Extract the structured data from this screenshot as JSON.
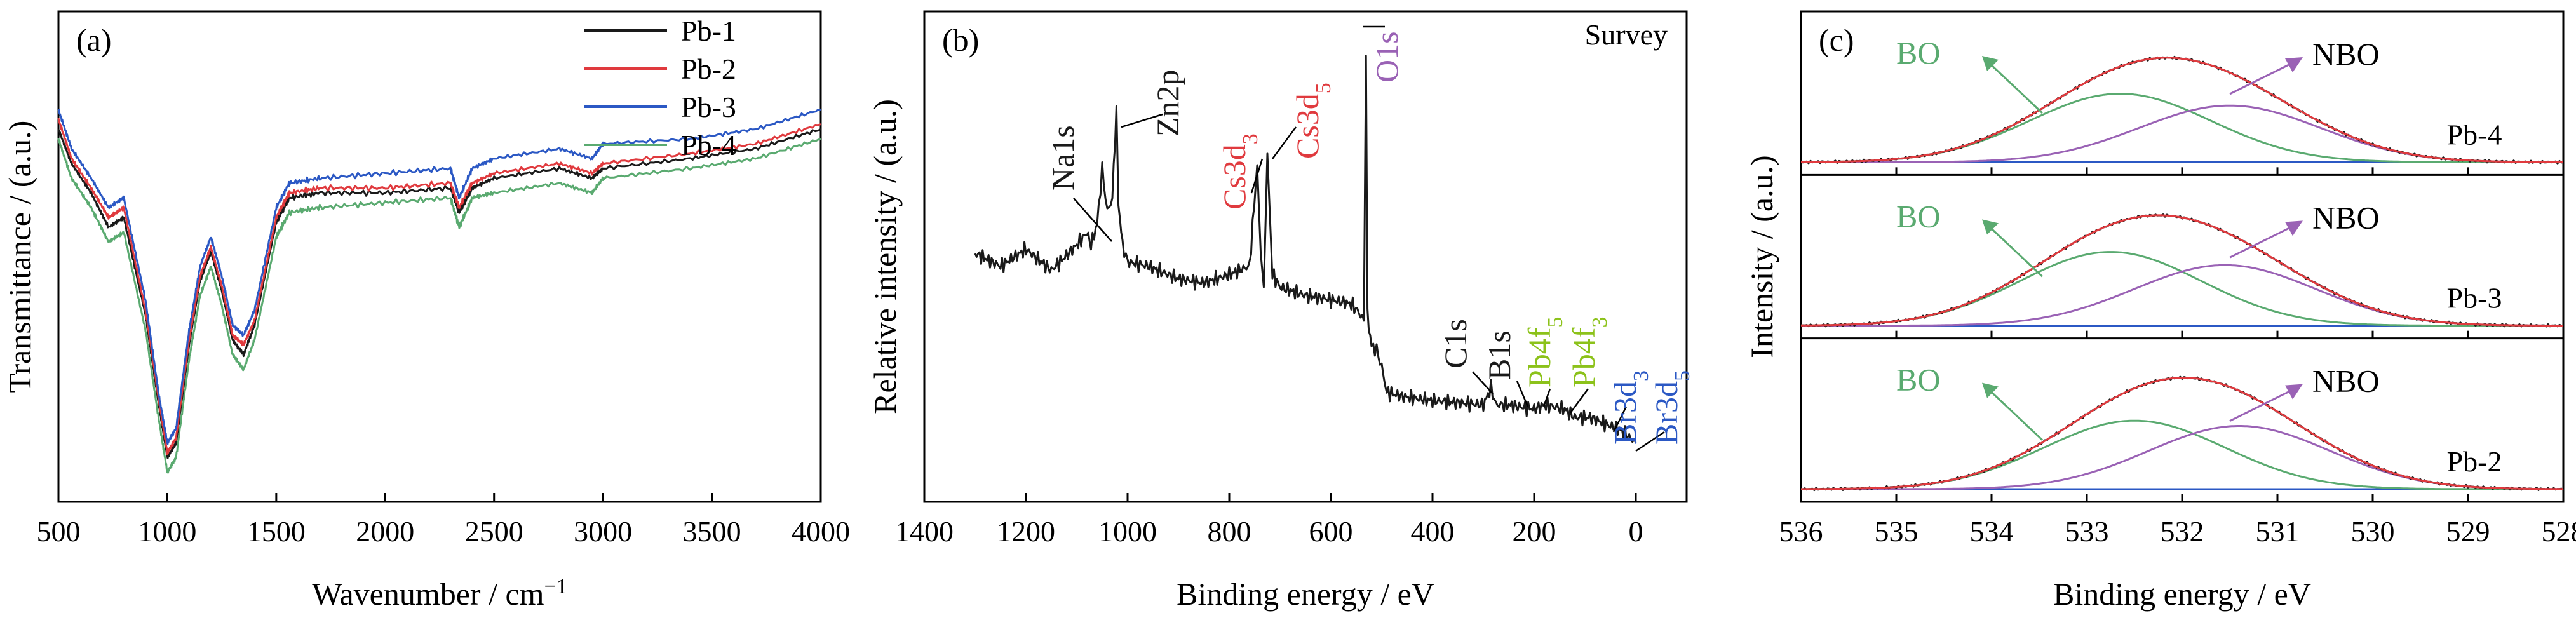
{
  "colors": {
    "black": "#1a1a1a",
    "red": "#e03a3e",
    "blue": "#2b58c4",
    "green": "#5aaa70",
    "purple": "#9a62b5",
    "lime": "#8cc21a",
    "orange": "#e8a15a"
  },
  "chart_data": [
    {
      "panel_label": "(a)",
      "type": "line",
      "xlabel": "Wavenumber / cm",
      "xlabel_sup": "−1",
      "ylabel": "Transmittance / (a.u.)",
      "xlim": [
        500,
        4000
      ],
      "xticks": [
        "500",
        "1000",
        "1500",
        "2000",
        "2500",
        "3000",
        "3500",
        "4000"
      ],
      "legend_position": "top-right",
      "series": [
        {
          "name": "Pb-1",
          "color": "#1a1a1a",
          "x": [
            500,
            560,
            650,
            730,
            800,
            900,
            960,
            1000,
            1040,
            1100,
            1150,
            1200,
            1250,
            1300,
            1350,
            1400,
            1500,
            1560,
            1700,
            2000,
            2300,
            2340,
            2400,
            2500,
            2800,
            2950,
            3000,
            3400,
            3700,
            4000
          ],
          "y": [
            0.76,
            0.69,
            0.63,
            0.56,
            0.58,
            0.38,
            0.2,
            0.09,
            0.12,
            0.32,
            0.45,
            0.51,
            0.43,
            0.33,
            0.3,
            0.36,
            0.57,
            0.62,
            0.63,
            0.63,
            0.64,
            0.59,
            0.64,
            0.66,
            0.68,
            0.66,
            0.68,
            0.7,
            0.72,
            0.76
          ]
        },
        {
          "name": "Pb-2",
          "color": "#e03a3e",
          "x": [
            500,
            560,
            650,
            730,
            800,
            900,
            960,
            1000,
            1040,
            1100,
            1150,
            1200,
            1250,
            1300,
            1350,
            1400,
            1500,
            1560,
            1700,
            2000,
            2300,
            2340,
            2400,
            2500,
            2800,
            2950,
            3000,
            3400,
            3700,
            4000
          ],
          "y": [
            0.78,
            0.7,
            0.64,
            0.58,
            0.6,
            0.39,
            0.21,
            0.1,
            0.13,
            0.33,
            0.46,
            0.52,
            0.44,
            0.34,
            0.32,
            0.37,
            0.58,
            0.63,
            0.64,
            0.64,
            0.65,
            0.6,
            0.65,
            0.67,
            0.69,
            0.67,
            0.69,
            0.71,
            0.73,
            0.77
          ]
        },
        {
          "name": "Pb-3",
          "color": "#2b58c4",
          "x": [
            500,
            560,
            650,
            730,
            800,
            900,
            960,
            1000,
            1040,
            1100,
            1150,
            1200,
            1250,
            1300,
            1350,
            1400,
            1500,
            1560,
            1700,
            2000,
            2300,
            2340,
            2400,
            2500,
            2800,
            2950,
            3000,
            3400,
            3700,
            4000
          ],
          "y": [
            0.8,
            0.72,
            0.66,
            0.6,
            0.62,
            0.41,
            0.22,
            0.12,
            0.15,
            0.35,
            0.48,
            0.54,
            0.46,
            0.36,
            0.34,
            0.39,
            0.6,
            0.65,
            0.66,
            0.67,
            0.68,
            0.62,
            0.68,
            0.7,
            0.72,
            0.7,
            0.73,
            0.74,
            0.76,
            0.8
          ]
        },
        {
          "name": "Pb-4",
          "color": "#5aaa70",
          "x": [
            500,
            560,
            650,
            730,
            800,
            900,
            960,
            1000,
            1040,
            1100,
            1150,
            1200,
            1250,
            1300,
            1350,
            1400,
            1500,
            1560,
            1700,
            2000,
            2300,
            2340,
            2400,
            2500,
            2800,
            2950,
            3000,
            3400,
            3700,
            4000
          ],
          "y": [
            0.74,
            0.66,
            0.6,
            0.53,
            0.55,
            0.35,
            0.17,
            0.06,
            0.09,
            0.29,
            0.42,
            0.48,
            0.4,
            0.3,
            0.27,
            0.33,
            0.54,
            0.59,
            0.6,
            0.61,
            0.62,
            0.56,
            0.62,
            0.63,
            0.65,
            0.63,
            0.66,
            0.68,
            0.7,
            0.74
          ]
        }
      ]
    },
    {
      "panel_label": "(b)",
      "type": "line",
      "title": "Survey",
      "xlabel": "Binding energy / eV",
      "ylabel": "Relative intensity / (a.u.)",
      "xlim": [
        1400,
        -100
      ],
      "xticks": [
        "1400",
        "1200",
        "1000",
        "800",
        "600",
        "400",
        "200",
        "0"
      ],
      "series": [
        {
          "name": "",
          "color": "#1a1a1a",
          "x": [
            1300,
            1250,
            1200,
            1150,
            1100,
            1080,
            1072,
            1060,
            1050,
            1040,
            1030,
            1022,
            1018,
            1010,
            1000,
            960,
            940,
            900,
            850,
            800,
            760,
            745,
            738,
            732,
            725,
            715,
            700,
            650,
            600,
            560,
            545,
            535,
            531,
            528,
            520,
            510,
            500,
            490,
            460,
            400,
            300,
            285,
            275,
            250,
            200,
            180,
            140,
            120,
            90,
            70,
            50,
            30,
            10,
            0
          ],
          "y": [
            0.5,
            0.47,
            0.51,
            0.46,
            0.52,
            0.55,
            0.52,
            0.57,
            0.7,
            0.6,
            0.63,
            0.85,
            0.62,
            0.52,
            0.48,
            0.47,
            0.46,
            0.44,
            0.43,
            0.45,
            0.47,
            0.71,
            0.5,
            0.42,
            0.73,
            0.45,
            0.42,
            0.4,
            0.39,
            0.38,
            0.36,
            0.34,
            0.97,
            0.35,
            0.28,
            0.27,
            0.23,
            0.17,
            0.16,
            0.15,
            0.14,
            0.18,
            0.14,
            0.14,
            0.13,
            0.14,
            0.13,
            0.11,
            0.11,
            0.1,
            0.09,
            0.08,
            0.06,
            0.05
          ]
        }
      ],
      "annotations": [
        {
          "label": "Na1s",
          "color": "#1a1a1a",
          "x": 1072
        },
        {
          "label": "Zn2p",
          "color": "#1a1a1a",
          "x": 1022
        },
        {
          "label": "Cs3d",
          "sub": "3",
          "color": "#e03a3e",
          "x": 738
        },
        {
          "label": "Cs3d",
          "sub": "5",
          "color": "#e03a3e",
          "x": 725
        },
        {
          "label": "O1s",
          "color": "#9a62b5",
          "x": 531
        },
        {
          "label": "C1s",
          "color": "#1a1a1a",
          "x": 285
        },
        {
          "label": "B1s",
          "color": "#1a1a1a",
          "x": 190
        },
        {
          "label": "Pb4f",
          "sub": "5",
          "color": "#8cc21a",
          "x": 143
        },
        {
          "label": "Pb4f",
          "sub": "3",
          "color": "#8cc21a",
          "x": 138
        },
        {
          "label": "Br3d",
          "sub": "3",
          "color": "#2b58c4",
          "x": 70
        },
        {
          "label": "Br3d",
          "sub": "5",
          "color": "#2b58c4",
          "x": 68
        }
      ]
    },
    {
      "panel_label": "(c)",
      "type": "line",
      "xlabel": "Binding energy / eV",
      "ylabel": "Intensity / (a.u.)",
      "xlim": [
        536,
        528
      ],
      "xticks": [
        "536",
        "535",
        "534",
        "533",
        "532",
        "531",
        "530",
        "529",
        "528"
      ],
      "subplots": [
        {
          "name": "Pb-4",
          "components": [
            {
              "name": "BO",
              "center": 532.65,
              "height": 0.52
            },
            {
              "name": "NBO",
              "center": 531.5,
              "height": 0.43
            }
          ]
        },
        {
          "name": "Pb-3",
          "components": [
            {
              "name": "BO",
              "center": 532.75,
              "height": 0.56
            },
            {
              "name": "NBO",
              "center": 531.55,
              "height": 0.46
            }
          ]
        },
        {
          "name": "Pb-2",
          "components": [
            {
              "name": "BO",
              "center": 532.5,
              "height": 0.52
            },
            {
              "name": "NBO",
              "center": 531.4,
              "height": 0.48
            }
          ]
        }
      ],
      "component_labels": [
        "BO",
        "NBO"
      ]
    }
  ]
}
